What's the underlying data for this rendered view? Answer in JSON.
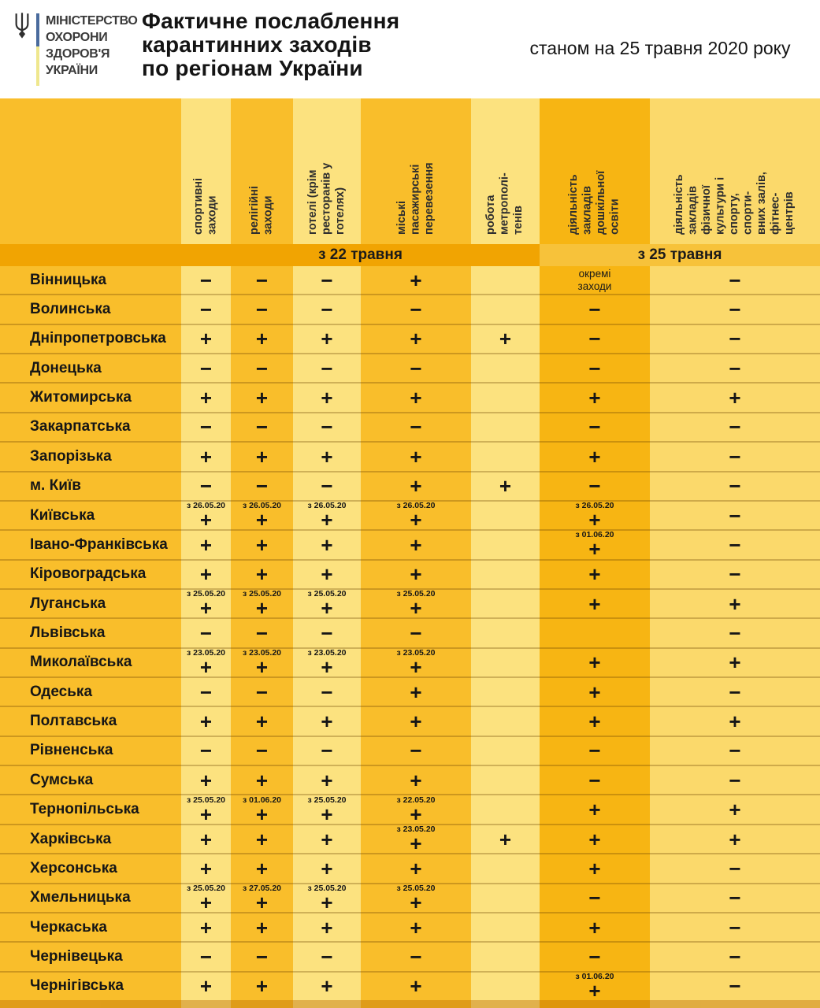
{
  "header": {
    "ministry": "МІНІСТЕРСТВО\nОХОРОНИ\nЗДОРОВ'Я\nУКРАЇНИ",
    "title": "Фактичне послаблення\nкарантинних заходів\nпо регіонам України",
    "date_note": "станом на 25 травня 2020 року"
  },
  "colors": {
    "amber": "#f9be2b",
    "light": "#fce27f",
    "col6": "#f7b513",
    "col7": "#fbd96b",
    "band_left": "#f1a402",
    "band_right": "#f7c23a",
    "divider_blue": "#4a6b9d",
    "divider_yellow": "#efe78e"
  },
  "chart_data": {
    "type": "table",
    "title": "Фактичне послаблення карантинних заходів по регіонам України",
    "subtitle": "станом на 25 травня 2020 року",
    "legend": {
      "plus": "+",
      "minus": "−"
    },
    "column_groups": [
      {
        "label": "з 22 травня",
        "columns": [
          0,
          1,
          2,
          3,
          4
        ]
      },
      {
        "label": "з 25 травня",
        "columns": [
          5,
          6
        ]
      }
    ],
    "columns": [
      "спортивні\nзаходи",
      "релігійні\nзаходи",
      "готелі (крім\nресторанів у\nготелях)",
      "міські\nпасажирські\nперевезення",
      "робота\nметрополі-\nтенів",
      "діяльність\nзакладів\nдошкільної\nосвіти",
      "діяльність\nзакладів\nфізичної\nкультури і\nспорту,\nспорти-\nвних залів,\nфітнес-\nцентрів"
    ],
    "rows": [
      {
        "region": "Вінницька",
        "cells": [
          "−",
          "−",
          "−",
          "+",
          "",
          "окремі\nзаходи",
          "−"
        ]
      },
      {
        "region": "Волинська",
        "cells": [
          "−",
          "−",
          "−",
          "−",
          "",
          "−",
          "−"
        ]
      },
      {
        "region": "Дніпропетровська",
        "cells": [
          "+",
          "+",
          "+",
          "+",
          "+",
          "−",
          "−"
        ]
      },
      {
        "region": "Донецька",
        "cells": [
          "−",
          "−",
          "−",
          "−",
          "",
          "−",
          "−"
        ]
      },
      {
        "region": "Житомирська",
        "cells": [
          "+",
          "+",
          "+",
          "+",
          "",
          "+",
          "+"
        ]
      },
      {
        "region": "Закарпатська",
        "cells": [
          "−",
          "−",
          "−",
          "−",
          "",
          "−",
          "−"
        ]
      },
      {
        "region": "Запорізька",
        "cells": [
          "+",
          "+",
          "+",
          "+",
          "",
          "+",
          "−"
        ]
      },
      {
        "region": "м. Київ",
        "cells": [
          "−",
          "−",
          "−",
          "+",
          "+",
          "−",
          "−"
        ]
      },
      {
        "region": "Київська",
        "cells": [
          "+@з 26.05.20",
          "+@з 26.05.20",
          "+@з 26.05.20",
          "+@з 26.05.20",
          "",
          "+@з 26.05.20",
          "−"
        ]
      },
      {
        "region": "Івано-Франківська",
        "cells": [
          "+",
          "+",
          "+",
          "+",
          "",
          "+@з 01.06.20",
          "−"
        ]
      },
      {
        "region": "Кіровоградська",
        "cells": [
          "+",
          "+",
          "+",
          "+",
          "",
          "+",
          "−"
        ]
      },
      {
        "region": "Луганська",
        "cells": [
          "+@з 25.05.20",
          "+@з 25.05.20",
          "+@з 25.05.20",
          "+@з 25.05.20",
          "",
          "+",
          "+"
        ]
      },
      {
        "region": "Львівська",
        "cells": [
          "−",
          "−",
          "−",
          "−",
          "",
          "",
          "−"
        ]
      },
      {
        "region": "Миколаївська",
        "cells": [
          "+@з 23.05.20",
          "+@з 23.05.20",
          "+@з 23.05.20",
          "+@з 23.05.20",
          "",
          "+",
          "+"
        ]
      },
      {
        "region": "Одеська",
        "cells": [
          "−",
          "−",
          "−",
          "+",
          "",
          "+",
          "−"
        ]
      },
      {
        "region": "Полтавська",
        "cells": [
          "+",
          "+",
          "+",
          "+",
          "",
          "+",
          "+"
        ]
      },
      {
        "region": "Рівненська",
        "cells": [
          "−",
          "−",
          "−",
          "−",
          "",
          "−",
          "−"
        ]
      },
      {
        "region": "Сумська",
        "cells": [
          "+",
          "+",
          "+",
          "+",
          "",
          "−",
          "−"
        ]
      },
      {
        "region": "Тернопільська",
        "cells": [
          "+@з 25.05.20",
          "+@з 01.06.20",
          "+@з 25.05.20",
          "+@з 22.05.20",
          "",
          "+",
          "+"
        ]
      },
      {
        "region": "Харківська",
        "cells": [
          "+",
          "+",
          "+",
          "+@з 23.05.20",
          "+",
          "+",
          "+"
        ]
      },
      {
        "region": "Херсонська",
        "cells": [
          "+",
          "+",
          "+",
          "+",
          "",
          "+",
          "−"
        ]
      },
      {
        "region": "Хмельницька",
        "cells": [
          "+@з 25.05.20",
          "+@з 27.05.20",
          "+@з 25.05.20",
          "+@з 25.05.20",
          "",
          "−",
          "−"
        ]
      },
      {
        "region": "Черкаська",
        "cells": [
          "+",
          "+",
          "+",
          "+",
          "",
          "+",
          "−"
        ]
      },
      {
        "region": "Чернівецька",
        "cells": [
          "−",
          "−",
          "−",
          "−",
          "",
          "−",
          "−"
        ]
      },
      {
        "region": "Чернігівська",
        "cells": [
          "+",
          "+",
          "+",
          "+",
          "",
          "+@з 01.06.20",
          "−"
        ]
      }
    ]
  }
}
